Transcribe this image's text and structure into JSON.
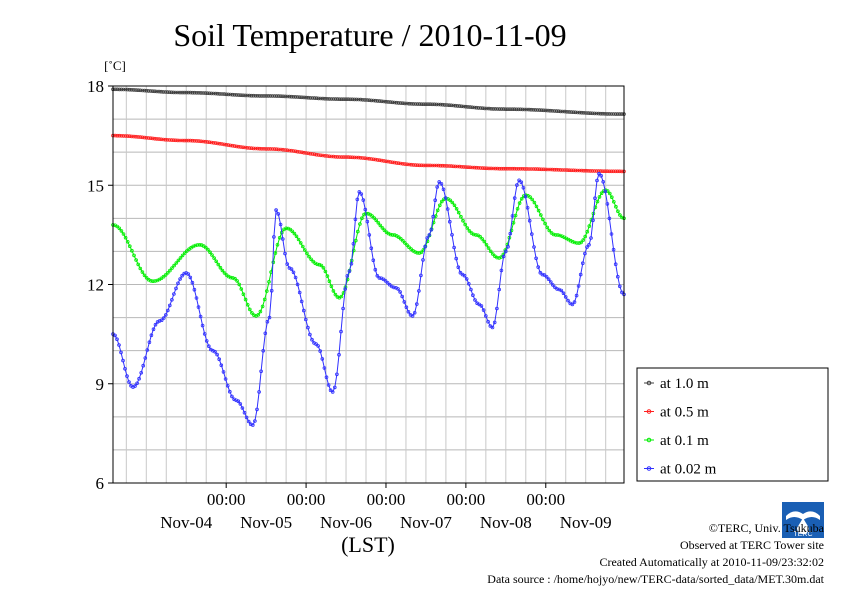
{
  "chart_data": {
    "type": "line",
    "title": "Soil Temperature / 2010-11-09",
    "ylabel": "[˚C]",
    "xlabel": "(LST)",
    "ylim": [
      6,
      18
    ],
    "yticks": [
      6,
      9,
      12,
      15,
      18
    ],
    "xlim": [
      "2010-11-03T14:00",
      "2010-11-09T23:30"
    ],
    "xticks": [
      {
        "time": "2010-11-05T00:00",
        "label": "00:00"
      },
      {
        "time": "2010-11-06T00:00",
        "label": "00:00"
      },
      {
        "time": "2010-11-07T00:00",
        "label": "00:00"
      },
      {
        "time": "2010-11-08T00:00",
        "label": "00:00"
      },
      {
        "time": "2010-11-09T00:00",
        "label": "00:00"
      }
    ],
    "date_labels": [
      {
        "time": "2010-11-04T12:00",
        "label": "Nov-04"
      },
      {
        "time": "2010-11-05T12:00",
        "label": "Nov-05"
      },
      {
        "time": "2010-11-06T12:00",
        "label": "Nov-06"
      },
      {
        "time": "2010-11-07T12:00",
        "label": "Nov-07"
      },
      {
        "time": "2010-11-08T12:00",
        "label": "Nov-08"
      },
      {
        "time": "2010-11-09T12:00",
        "label": "Nov-09"
      }
    ],
    "grid": true,
    "legend_position": "right",
    "series": [
      {
        "name": "at 1.0 m",
        "color": "#404040",
        "points": [
          [
            "2010-11-03T14:00",
            17.9
          ],
          [
            "2010-11-04T12:00",
            17.8
          ],
          [
            "2010-11-05T12:00",
            17.7
          ],
          [
            "2010-11-06T12:00",
            17.6
          ],
          [
            "2010-11-07T12:00",
            17.45
          ],
          [
            "2010-11-08T12:00",
            17.3
          ],
          [
            "2010-11-09T23:30",
            17.15
          ]
        ]
      },
      {
        "name": "at 0.5 m",
        "color": "#ff2020",
        "points": [
          [
            "2010-11-03T14:00",
            16.5
          ],
          [
            "2010-11-04T12:00",
            16.35
          ],
          [
            "2010-11-05T12:00",
            16.1
          ],
          [
            "2010-11-06T12:00",
            15.85
          ],
          [
            "2010-11-07T12:00",
            15.6
          ],
          [
            "2010-11-08T12:00",
            15.5
          ],
          [
            "2010-11-09T23:30",
            15.42
          ]
        ]
      },
      {
        "name": "at 0.1 m",
        "color": "#00ee00",
        "points": [
          [
            "2010-11-03T14:00",
            13.8
          ],
          [
            "2010-11-04T02:00",
            12.1
          ],
          [
            "2010-11-04T16:00",
            13.2
          ],
          [
            "2010-11-05T02:00",
            12.2
          ],
          [
            "2010-11-05T09:00",
            11.05
          ],
          [
            "2010-11-05T18:00",
            13.7
          ],
          [
            "2010-11-06T04:00",
            12.6
          ],
          [
            "2010-11-06T10:00",
            11.6
          ],
          [
            "2010-11-06T18:00",
            14.15
          ],
          [
            "2010-11-07T02:00",
            13.5
          ],
          [
            "2010-11-07T10:00",
            12.95
          ],
          [
            "2010-11-07T18:00",
            14.6
          ],
          [
            "2010-11-08T03:00",
            13.5
          ],
          [
            "2010-11-08T10:00",
            12.8
          ],
          [
            "2010-11-08T18:00",
            14.7
          ],
          [
            "2010-11-09T03:00",
            13.5
          ],
          [
            "2010-11-09T10:00",
            13.25
          ],
          [
            "2010-11-09T18:00",
            14.85
          ],
          [
            "2010-11-09T23:30",
            14.0
          ]
        ]
      },
      {
        "name": "at 0.02 m",
        "color": "#3030ff",
        "points": [
          [
            "2010-11-03T14:00",
            10.5
          ],
          [
            "2010-11-03T20:00",
            8.9
          ],
          [
            "2010-11-04T04:00",
            10.9
          ],
          [
            "2010-11-04T12:00",
            12.35
          ],
          [
            "2010-11-04T20:00",
            10.0
          ],
          [
            "2010-11-05T03:00",
            8.5
          ],
          [
            "2010-11-05T08:00",
            7.75
          ],
          [
            "2010-11-05T13:00",
            11.0
          ],
          [
            "2010-11-05T15:00",
            14.25
          ],
          [
            "2010-11-05T19:00",
            12.5
          ],
          [
            "2010-11-06T03:00",
            10.2
          ],
          [
            "2010-11-06T08:00",
            8.75
          ],
          [
            "2010-11-06T13:00",
            12.4
          ],
          [
            "2010-11-06T16:00",
            14.8
          ],
          [
            "2010-11-06T22:00",
            12.2
          ],
          [
            "2010-11-07T03:00",
            11.9
          ],
          [
            "2010-11-07T08:00",
            11.05
          ],
          [
            "2010-11-07T13:00",
            13.5
          ],
          [
            "2010-11-07T16:00",
            15.1
          ],
          [
            "2010-11-07T23:00",
            12.3
          ],
          [
            "2010-11-08T04:00",
            11.4
          ],
          [
            "2010-11-08T08:00",
            10.7
          ],
          [
            "2010-11-08T12:00",
            13.0
          ],
          [
            "2010-11-08T16:00",
            15.15
          ],
          [
            "2010-11-08T23:00",
            12.3
          ],
          [
            "2010-11-09T04:00",
            11.85
          ],
          [
            "2010-11-09T08:00",
            11.4
          ],
          [
            "2010-11-09T13:00",
            13.2
          ],
          [
            "2010-11-09T16:00",
            15.35
          ],
          [
            "2010-11-09T23:30",
            11.7
          ]
        ]
      }
    ]
  },
  "footer": {
    "credit": "©TERC, Univ. Tsukuba",
    "observed": "Observed at TERC Tower site",
    "created": "Created Automatically at 2010-11-09/23:32:02",
    "source": "Data source : /home/hojyo/new/TERC-data/sorted_data/MET.30m.dat"
  },
  "logo": {
    "text": "TERC",
    "color": "#1a5fb4"
  }
}
